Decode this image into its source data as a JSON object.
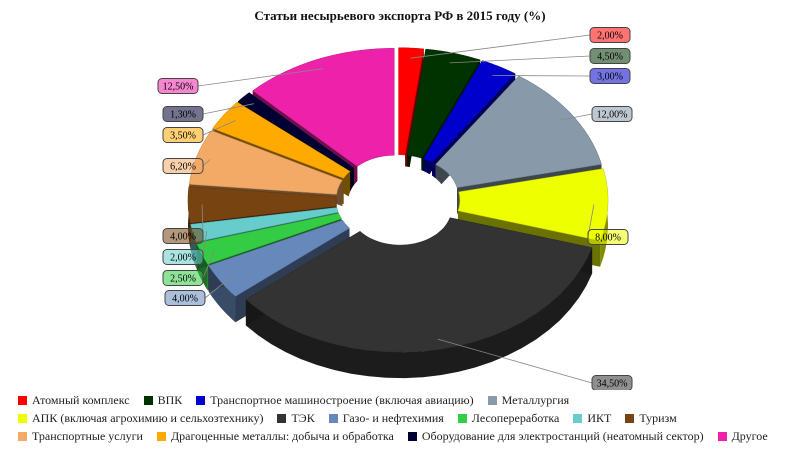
{
  "chart_data": {
    "type": "pie",
    "title": "Статьи несырьевого экспорта РФ в 2015 году (%)",
    "slices": [
      {
        "name": "Атомный комплекс",
        "value": 2.0,
        "label": "2,00%",
        "color": "#ff0000"
      },
      {
        "name": "ВПК",
        "value": 4.5,
        "label": "4,50%",
        "color": "#003300"
      },
      {
        "name": "Транспортное машиностроение (включая авиацию)",
        "value": 3.0,
        "label": "3,00%",
        "color": "#0000cc"
      },
      {
        "name": "Металлургия",
        "value": 12.0,
        "label": "12,00%",
        "color": "#8899aa"
      },
      {
        "name": "АПК (включая агрохимию и сельхозтехнику)",
        "value": 8.0,
        "label": "8,00%",
        "color": "#eeff00"
      },
      {
        "name": "ТЭК",
        "value": 34.5,
        "label": "34,50%",
        "color": "#333333"
      },
      {
        "name": "Газо- и нефтехимия",
        "value": 4.0,
        "label": "4,00%",
        "color": "#6688bb"
      },
      {
        "name": "Лесопереработка",
        "value": 2.5,
        "label": "2,50%",
        "color": "#33cc44"
      },
      {
        "name": "ИКТ",
        "value": 2.0,
        "label": "2,00%",
        "color": "#66cccc"
      },
      {
        "name": "Туризм",
        "value": 4.0,
        "label": "4,00%",
        "color": "#774411"
      },
      {
        "name": "Транспортные услуги",
        "value": 6.2,
        "label": "6,20%",
        "color": "#f2aa66"
      },
      {
        "name": "Драгоценные металлы: добыча и обработка",
        "value": 3.5,
        "label": "3,50%",
        "color": "#ffaa00"
      },
      {
        "name": "Оборудование для электростанций (неатомный сектор)",
        "value": 1.3,
        "label": "1,30%",
        "color": "#000033"
      },
      {
        "name": "Другое",
        "value": 12.5,
        "label": "12,50%",
        "color": "#ee22aa"
      }
    ],
    "legend_placement": "bottom"
  }
}
